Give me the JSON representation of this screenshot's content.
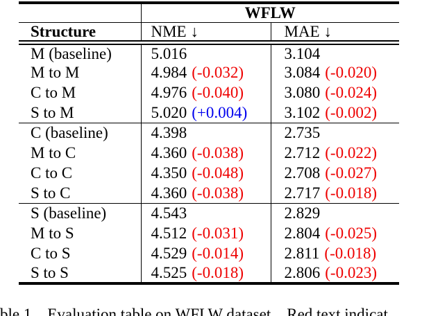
{
  "page": {
    "background": "#ffffff"
  },
  "colors": {
    "text": "#000000",
    "rule": "#000000",
    "delta_improvement_red": "#ee0000",
    "delta_regression_blue": "#0000ee"
  },
  "table": {
    "dataset_header": "WFLW",
    "columns": {
      "structure": "Structure",
      "nme": "NME ↓",
      "mae": "MAE ↓"
    },
    "groups": [
      {
        "rows": [
          {
            "structure": "M (baseline)",
            "nme": "5.016",
            "nme_delta": "",
            "nme_delta_color": "",
            "mae": "3.104",
            "mae_delta": "",
            "mae_delta_color": ""
          },
          {
            "structure": "M to M",
            "nme": "4.984",
            "nme_delta": "(-0.032)",
            "nme_delta_color": "#ee0000",
            "mae": "3.084",
            "mae_delta": "(-0.020)",
            "mae_delta_color": "#ee0000"
          },
          {
            "structure": "C to M",
            "nme": "4.976",
            "nme_delta": "(-0.040)",
            "nme_delta_color": "#ee0000",
            "mae": "3.080",
            "mae_delta": "(-0.024)",
            "mae_delta_color": "#ee0000"
          },
          {
            "structure": "S to M",
            "nme": "5.020",
            "nme_delta": "(+0.004)",
            "nme_delta_color": "#0000ee",
            "mae": "3.102",
            "mae_delta": "(-0.002)",
            "mae_delta_color": "#ee0000"
          }
        ]
      },
      {
        "rows": [
          {
            "structure": "C (baseline)",
            "nme": "4.398",
            "nme_delta": "",
            "nme_delta_color": "",
            "mae": "2.735",
            "mae_delta": "",
            "mae_delta_color": ""
          },
          {
            "structure": "M to C",
            "nme": "4.360",
            "nme_delta": "(-0.038)",
            "nme_delta_color": "#ee0000",
            "mae": "2.712",
            "mae_delta": "(-0.022)",
            "mae_delta_color": "#ee0000"
          },
          {
            "structure": "C to C",
            "nme": "4.350",
            "nme_delta": "(-0.048)",
            "nme_delta_color": "#ee0000",
            "mae": "2.708",
            "mae_delta": "(-0.027)",
            "mae_delta_color": "#ee0000"
          },
          {
            "structure": "S to C",
            "nme": "4.360",
            "nme_delta": "(-0.038)",
            "nme_delta_color": "#ee0000",
            "mae": "2.717",
            "mae_delta": "(-0.018)",
            "mae_delta_color": "#ee0000"
          }
        ]
      },
      {
        "rows": [
          {
            "structure": "S (baseline)",
            "nme": "4.543",
            "nme_delta": "",
            "nme_delta_color": "",
            "mae": "2.829",
            "mae_delta": "",
            "mae_delta_color": ""
          },
          {
            "structure": "M to S",
            "nme": "4.512",
            "nme_delta": "(-0.031)",
            "nme_delta_color": "#ee0000",
            "mae": "2.804",
            "mae_delta": "(-0.025)",
            "mae_delta_color": "#ee0000"
          },
          {
            "structure": "C to S",
            "nme": "4.529",
            "nme_delta": "(-0.014)",
            "nme_delta_color": "#ee0000",
            "mae": "2.811",
            "mae_delta": "(-0.018)",
            "mae_delta_color": "#ee0000"
          },
          {
            "structure": "S to S",
            "nme": "4.525",
            "nme_delta": "(-0.018)",
            "nme_delta_color": "#ee0000",
            "mae": "2.806",
            "mae_delta": "(-0.023)",
            "mae_delta_color": "#ee0000"
          }
        ]
      }
    ]
  },
  "caption": {
    "visible_text": "ble 1.   Evaluation table on WFLW dataset.   Red text indicat"
  }
}
